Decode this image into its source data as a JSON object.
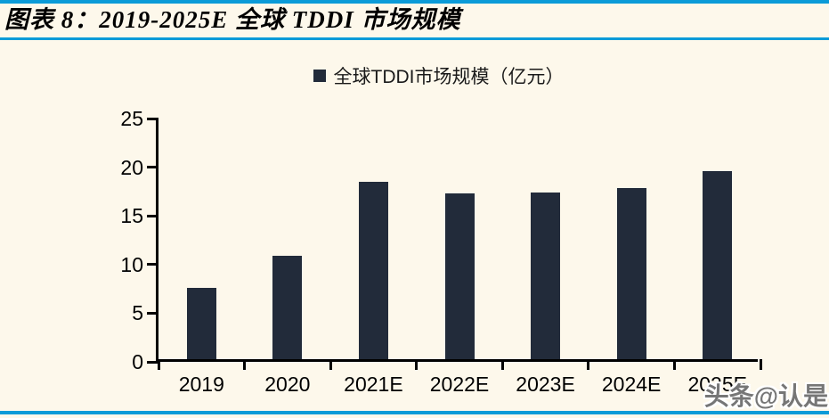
{
  "page": {
    "title": "图表 8：2019-2025E 全球 TDDI 市场规模",
    "watermark": "头条@认是"
  },
  "legend": {
    "marker": "square",
    "label": "全球TDDI市场规模（亿元）"
  },
  "colors": {
    "background": "#FDF8EB",
    "bar": "#222B3A",
    "accent_line": "#0B9BD8",
    "axis": "#000000",
    "watermark_text": "#767676"
  },
  "chart_data": {
    "type": "bar",
    "title": "全球TDDI市场规模（亿元）",
    "categories": [
      "2019",
      "2020",
      "2021E",
      "2022E",
      "2023E",
      "2024E",
      "2025E"
    ],
    "values": [
      7.3,
      10.6,
      18.2,
      17.0,
      17.1,
      17.6,
      19.3
    ],
    "unit": "亿元",
    "xlabel": "",
    "ylabel": "",
    "ylim": [
      0,
      25
    ],
    "yticks": [
      0,
      5,
      10,
      15,
      20,
      25
    ],
    "grid": false,
    "legend_position": "top-center"
  }
}
